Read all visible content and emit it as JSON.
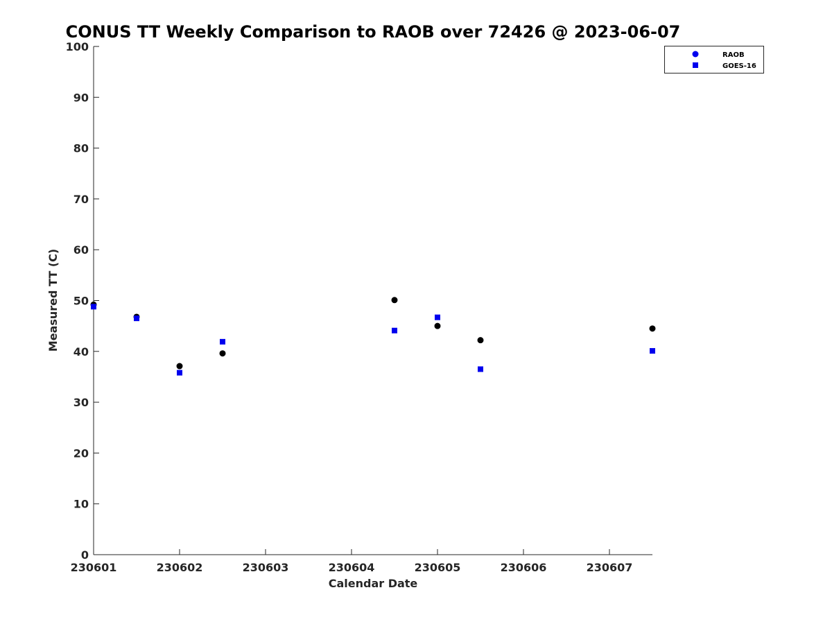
{
  "chart_data": {
    "type": "scatter",
    "title": "CONUS TT Weekly Comparison to RAOB over 72426 @ 2023-06-07",
    "xlabel": "Calendar Date",
    "ylabel": "Measured TT (C)",
    "xlim": [
      0,
      6.5
    ],
    "ylim": [
      0,
      100
    ],
    "x_ticks": [
      {
        "value": 0,
        "label": "230601"
      },
      {
        "value": 1,
        "label": "230602"
      },
      {
        "value": 2,
        "label": "230603"
      },
      {
        "value": 3,
        "label": "230604"
      },
      {
        "value": 4,
        "label": "230605"
      },
      {
        "value": 5,
        "label": "230606"
      },
      {
        "value": 6,
        "label": "230607"
      }
    ],
    "y_ticks": [
      0,
      10,
      20,
      30,
      40,
      50,
      60,
      70,
      80,
      90,
      100
    ],
    "grid": false,
    "legend_position": "top-right",
    "series": [
      {
        "name": "RAOB",
        "marker": "circle",
        "color": "#000000",
        "legend_color": "#0000ee",
        "x": [
          0,
          0.5,
          1,
          1.5,
          3.5,
          4,
          4.5,
          6.5
        ],
        "y": [
          49.2,
          46.8,
          37.1,
          39.6,
          50.1,
          45.0,
          42.2,
          44.5
        ]
      },
      {
        "name": "GOES-16",
        "marker": "square",
        "color": "#0000ee",
        "legend_color": "#0000ee",
        "x": [
          0,
          0.5,
          1,
          1.5,
          3.5,
          4,
          4.5,
          6.5
        ],
        "y": [
          48.8,
          46.5,
          35.8,
          41.9,
          44.1,
          46.7,
          36.5,
          40.1
        ]
      }
    ]
  }
}
